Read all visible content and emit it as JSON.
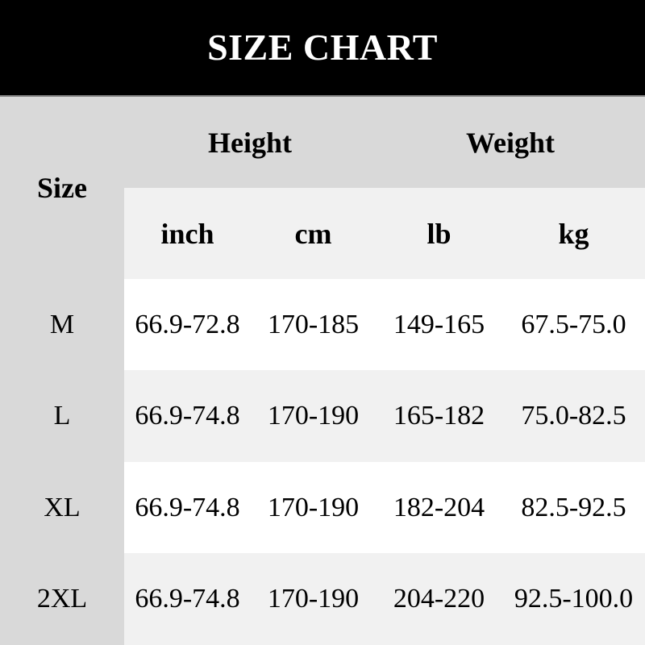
{
  "title": "SIZE CHART",
  "table": {
    "corner_label": "Size",
    "group_headers": [
      {
        "label": "Height",
        "units": [
          "inch",
          "cm"
        ]
      },
      {
        "label": "Weight",
        "units": [
          "lb",
          "kg"
        ]
      }
    ],
    "unit_headers": [
      "inch",
      "cm",
      "lb",
      "kg"
    ],
    "rows": [
      {
        "size": "M",
        "inch": "66.9-72.8",
        "cm": "170-185",
        "lb": "149-165",
        "kg": "67.5-75.0"
      },
      {
        "size": "L",
        "inch": "66.9-74.8",
        "cm": "170-190",
        "lb": "165-182",
        "kg": "75.0-82.5"
      },
      {
        "size": "XL",
        "inch": "66.9-74.8",
        "cm": "170-190",
        "lb": "182-204",
        "kg": "82.5-92.5"
      },
      {
        "size": "2XL",
        "inch": "66.9-74.8",
        "cm": "170-190",
        "lb": "204-220",
        "kg": "92.5-100.0"
      }
    ]
  },
  "colors": {
    "header_bg": "#000000",
    "title_color": "#ffffff",
    "page_bg": "#d9d9d9",
    "panel_light": "#f1f1f1",
    "row_white": "#ffffff",
    "text_color": "#000000",
    "divider": "#7e7e7e"
  },
  "chart_data": {
    "type": "table",
    "title": "SIZE CHART",
    "columns": [
      "Size",
      "Height (inch)",
      "Height (cm)",
      "Weight (lb)",
      "Weight (kg)"
    ],
    "rows": [
      [
        "M",
        "66.9-72.8",
        "170-185",
        "149-165",
        "67.5-75.0"
      ],
      [
        "L",
        "66.9-74.8",
        "170-190",
        "165-182",
        "75.0-82.5"
      ],
      [
        "XL",
        "66.9-74.8",
        "170-190",
        "182-204",
        "82.5-92.5"
      ],
      [
        "2XL",
        "66.9-74.8",
        "170-190",
        "204-220",
        "92.5-100.0"
      ]
    ],
    "layout": "black title banner on top; 2-level header (Height/Weight groups over inch/cm/lb/kg units); Size column on gray background; data rows alternate white and light-gray"
  }
}
